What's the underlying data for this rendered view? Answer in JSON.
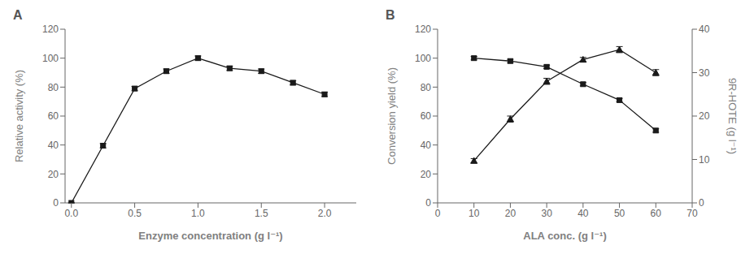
{
  "chart_data": [
    {
      "type": "line",
      "title": "A",
      "x": [
        0.0,
        0.25,
        0.5,
        0.75,
        1.0,
        1.25,
        1.5,
        1.75,
        2.0
      ],
      "series": [
        {
          "color": "#1a1a1a",
          "marker": "square",
          "line_style": "solid",
          "values": [
            0.0,
            39.5,
            79.0,
            91.0,
            100.0,
            93.0,
            91.0,
            83.0,
            75.0
          ],
          "yerr": [
            0.3,
            1.5,
            1.5,
            1.5,
            1.5,
            1.5,
            1.5,
            1.5,
            1.5
          ]
        }
      ],
      "xlabel": "Enzyme concentration (g l⁻¹)",
      "ylabel": "Relative activity (%)",
      "xlim": [
        -0.05,
        2.25
      ],
      "ylim": [
        0,
        120
      ],
      "xticks": [
        {
          "value": 0.0,
          "label": "0.0"
        },
        0.5,
        {
          "value": 1.0,
          "label": "1.0"
        },
        1.5,
        {
          "value": 2.0,
          "label": "2.0"
        }
      ],
      "yticks": [
        0,
        20,
        40,
        60,
        80,
        100,
        120
      ],
      "grid": false
    },
    {
      "type": "line",
      "title": "B",
      "x": [
        10,
        20,
        30,
        40,
        50,
        60
      ],
      "series": [
        {
          "color": "#1a1a1a",
          "marker": "square",
          "line_style": "solid",
          "values": [
            100.0,
            98.0,
            94.0,
            82.0,
            71.0,
            50.0
          ],
          "yerr": [
            1.2,
            1.2,
            1.2,
            1.2,
            1.2,
            1.2
          ]
        },
        {
          "color": "#1a1a1a",
          "marker": "triangle",
          "line_style": "solid",
          "axis": "y2",
          "values": [
            9.7,
            19.3,
            28.0,
            33.0,
            35.3,
            30.0
          ],
          "yerr": [
            0.5,
            0.7,
            0.7,
            0.5,
            0.7,
            0.7
          ]
        }
      ],
      "xlabel": "ALA conc. (g l⁻¹)",
      "ylabel": "Conversion yield (%)",
      "y2label": "9R-HOTE (g l⁻¹)",
      "xlim": [
        0,
        70
      ],
      "ylim": [
        0,
        120
      ],
      "y2lim": [
        0,
        40
      ],
      "xticks": [
        0,
        10,
        20,
        30,
        40,
        50,
        60,
        70
      ],
      "yticks": [
        0,
        20,
        40,
        60,
        80,
        100,
        120
      ],
      "y2ticks": [
        0,
        10,
        20,
        30,
        40
      ],
      "grid": false
    }
  ]
}
